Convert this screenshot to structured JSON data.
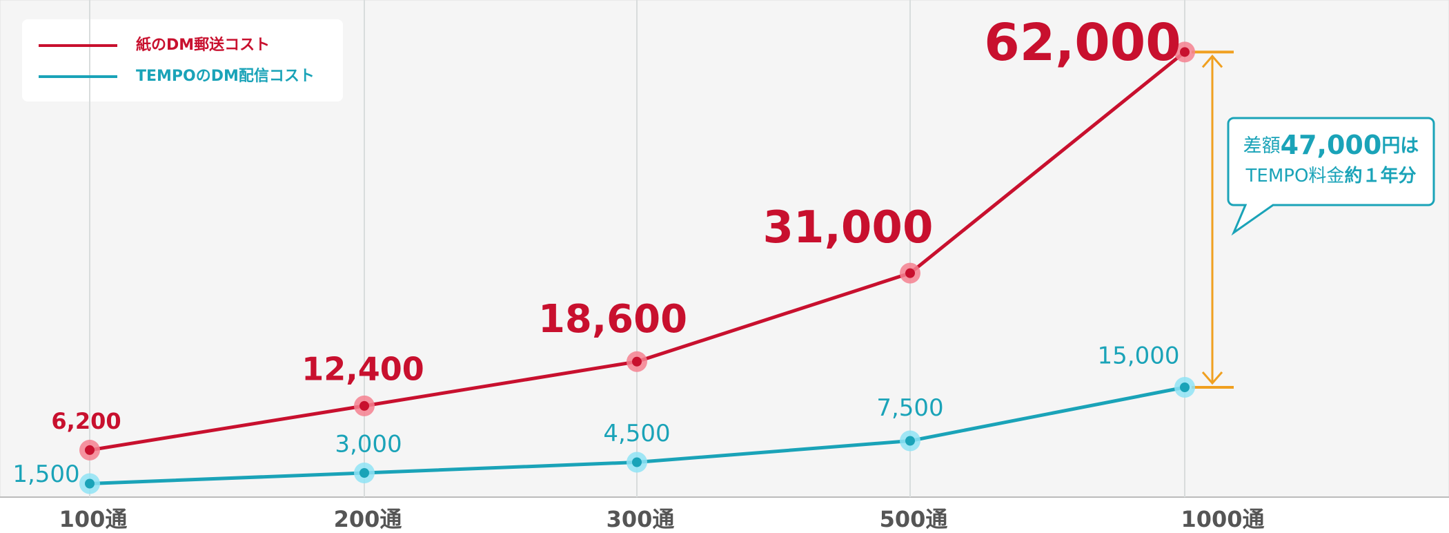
{
  "chart_data": {
    "type": "line",
    "categories": [
      "100通",
      "200通",
      "300通",
      "500通",
      "1000通"
    ],
    "series": [
      {
        "name": "紙のDM郵送コスト",
        "color": "#c8102e",
        "halo": "#f5808f",
        "values": [
          6200,
          12400,
          18600,
          31000,
          62000
        ],
        "value_labels": [
          "6,200",
          "12,400",
          "18,600",
          "31,000",
          "62,000"
        ]
      },
      {
        "name": "TEMPOのDM配信コスト",
        "color": "#1aa3b8",
        "halo": "#8fe3f5",
        "values": [
          1500,
          3000,
          4500,
          7500,
          15000
        ],
        "value_labels": [
          "1,500",
          "3,000",
          "4,500",
          "7,500",
          "15,000"
        ]
      }
    ],
    "ylim": [
      0,
      69000
    ],
    "grid": true,
    "legend": "top-left",
    "annotation": {
      "line1": [
        "差額",
        "47,000",
        "円は"
      ],
      "line2": [
        "TEMPO料金",
        "約１年分"
      ],
      "color": "#f0a020"
    }
  }
}
